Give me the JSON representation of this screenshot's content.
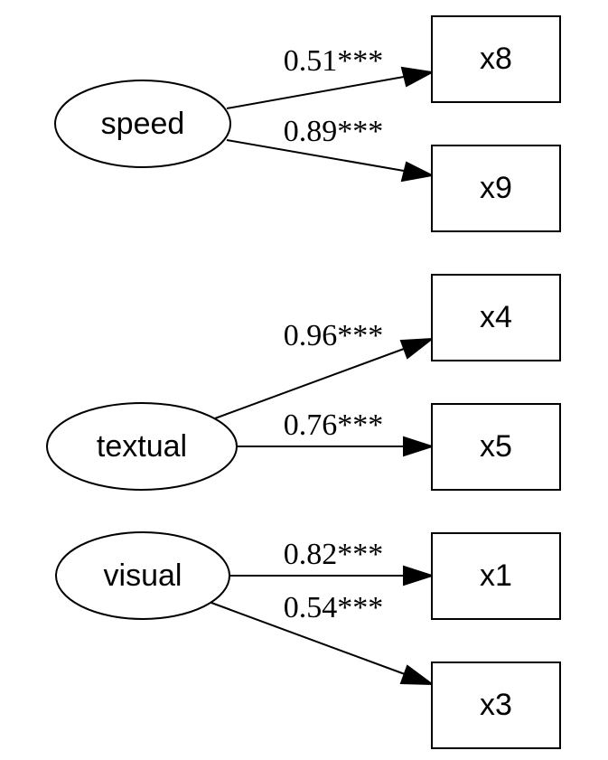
{
  "latent_factors": [
    {
      "id": "speed",
      "label": "speed"
    },
    {
      "id": "textual",
      "label": "textual"
    },
    {
      "id": "visual",
      "label": "visual"
    }
  ],
  "observed_variables": [
    {
      "id": "x8",
      "label": "x8"
    },
    {
      "id": "x9",
      "label": "x9"
    },
    {
      "id": "x4",
      "label": "x4"
    },
    {
      "id": "x5",
      "label": "x5"
    },
    {
      "id": "x1",
      "label": "x1"
    },
    {
      "id": "x3",
      "label": "x3"
    }
  ],
  "loadings": [
    {
      "from": "speed",
      "to": "x8",
      "label": "0.51***"
    },
    {
      "from": "speed",
      "to": "x9",
      "label": "0.89***"
    },
    {
      "from": "textual",
      "to": "x4",
      "label": "0.96***"
    },
    {
      "from": "textual",
      "to": "x5",
      "label": "0.76***"
    },
    {
      "from": "visual",
      "to": "x1",
      "label": "0.82***"
    },
    {
      "from": "visual",
      "to": "x3",
      "label": "0.54***"
    }
  ]
}
